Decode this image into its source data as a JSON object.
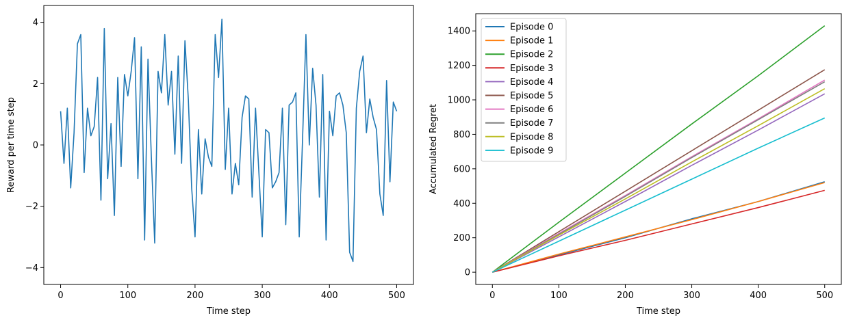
{
  "chart_data": [
    {
      "type": "line",
      "xlabel": "Time step",
      "ylabel": "Reward per time step",
      "xlim": [
        -25,
        525
      ],
      "ylim": [
        -4.55,
        4.55
      ],
      "xticks": [
        0,
        100,
        200,
        300,
        400,
        500
      ],
      "yticks": [
        -4,
        -2,
        0,
        2,
        4
      ],
      "grid": false,
      "series": [
        {
          "color": "#1f77b4",
          "x_start": 0,
          "x_step": 5,
          "values": [
            1.1,
            -0.6,
            1.2,
            -1.4,
            0.4,
            3.3,
            3.6,
            -0.9,
            1.2,
            0.3,
            0.6,
            2.2,
            -1.8,
            3.8,
            -1.1,
            0.7,
            -2.3,
            2.2,
            -0.7,
            2.3,
            1.6,
            2.4,
            3.5,
            -1.1,
            3.2,
            -3.1,
            2.8,
            -0.4,
            -3.2,
            2.4,
            1.7,
            3.6,
            1.3,
            2.4,
            -0.3,
            2.9,
            -0.6,
            3.4,
            1.5,
            -1.4,
            -3.0,
            0.5,
            -1.6,
            0.2,
            -0.4,
            -0.7,
            3.6,
            2.2,
            4.1,
            -0.8,
            1.2,
            -1.6,
            -0.6,
            -1.3,
            0.9,
            1.6,
            1.5,
            -1.7,
            1.2,
            -0.9,
            -3.0,
            0.5,
            0.4,
            -1.4,
            -1.2,
            -0.9,
            1.2,
            -2.6,
            1.3,
            1.4,
            1.7,
            -3.0,
            0.2,
            3.6,
            0.0,
            2.5,
            1.3,
            -1.7,
            2.3,
            -3.1,
            1.1,
            0.3,
            1.6,
            1.7,
            1.3,
            0.4,
            -3.5,
            -3.8,
            1.2,
            2.4,
            2.9,
            0.4,
            1.5,
            0.9,
            0.5,
            -1.6,
            -2.3,
            2.1,
            -1.2,
            1.4,
            1.1
          ]
        }
      ]
    },
    {
      "type": "line",
      "xlabel": "Time step",
      "ylabel": "Accumulated Regret",
      "xlim": [
        -25,
        525
      ],
      "ylim": [
        -71,
        1500
      ],
      "xticks": [
        0,
        100,
        200,
        300,
        400,
        500
      ],
      "yticks": [
        0,
        200,
        400,
        600,
        800,
        1000,
        1200,
        1400
      ],
      "grid": false,
      "legend": "upper-left",
      "x": [
        0,
        100,
        200,
        300,
        400,
        500
      ],
      "series": [
        {
          "name": "Episode 0",
          "color": "#1f77b4",
          "values": [
            0,
            100,
            200,
            310,
            410,
            525
          ]
        },
        {
          "name": "Episode 1",
          "color": "#ff7f0e",
          "values": [
            0,
            105,
            205,
            305,
            410,
            520
          ]
        },
        {
          "name": "Episode 2",
          "color": "#2ca02c",
          "values": [
            0,
            290,
            575,
            860,
            1140,
            1430
          ]
        },
        {
          "name": "Episode 3",
          "color": "#d62728",
          "values": [
            0,
            95,
            185,
            280,
            375,
            475
          ]
        },
        {
          "name": "Episode 4",
          "color": "#9467bd",
          "values": [
            0,
            205,
            410,
            620,
            825,
            1035
          ]
        },
        {
          "name": "Episode 5",
          "color": "#8c564b",
          "values": [
            0,
            235,
            470,
            705,
            940,
            1175
          ]
        },
        {
          "name": "Episode 6",
          "color": "#e377c2",
          "values": [
            0,
            225,
            445,
            670,
            890,
            1115
          ]
        },
        {
          "name": "Episode 7",
          "color": "#7f7f7f",
          "values": [
            0,
            220,
            440,
            665,
            885,
            1105
          ]
        },
        {
          "name": "Episode 8",
          "color": "#bcbd22",
          "values": [
            0,
            215,
            425,
            640,
            850,
            1065
          ]
        },
        {
          "name": "Episode 9",
          "color": "#17becf",
          "values": [
            0,
            180,
            360,
            540,
            720,
            895
          ]
        }
      ]
    }
  ]
}
